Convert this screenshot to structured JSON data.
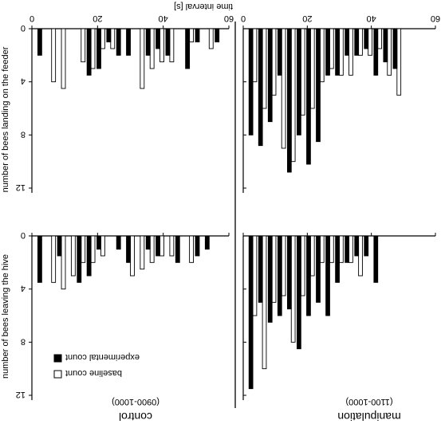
{
  "figure": {
    "x_axis_title": "time interval [s]",
    "y_label_top": "number of bees landing on the feeder",
    "y_label_bottom": "number of bees leaving the hive",
    "panel_left_title": "manipulation",
    "panel_left_time": "(1100-1000)",
    "panel_right_title": "control",
    "panel_right_time": "(0900-1000)",
    "legend_baseline": "baseline count",
    "legend_experimental": "experimental count",
    "legend_baseline_color": "#ffffff",
    "legend_experimental_color": "#000000"
  },
  "chart_data": [
    {
      "type": "bar",
      "title": "manipulation",
      "subtitle": "(1100-1000)",
      "ylabel": "number of bees landing on the feeder",
      "xlabel": "time interval [s]",
      "ylim": [
        0,
        12
      ],
      "xlim": [
        0,
        60
      ],
      "x_ticks": [
        0,
        20,
        40,
        60
      ],
      "y_ticks": [
        0,
        4,
        8,
        12
      ],
      "categories": [
        3,
        6,
        9,
        12,
        15,
        18,
        21,
        24,
        27,
        30,
        33,
        36,
        39,
        42,
        45,
        48,
        51,
        54,
        57
      ],
      "series": [
        {
          "name": "baseline count",
          "color": "#ffffff",
          "values": [
            4,
            6,
            5,
            9,
            10,
            6.5,
            6,
            4,
            3,
            3.5,
            3.5,
            2,
            2,
            1.5,
            3.5,
            5,
            0,
            0,
            0
          ]
        },
        {
          "name": "experimental count",
          "color": "#000000",
          "values": [
            8,
            8.8,
            7,
            3.5,
            10.8,
            8,
            10.2,
            8.5,
            3.5,
            3.5,
            2,
            2,
            1.5,
            3.5,
            2.5,
            3,
            0,
            0,
            0
          ]
        }
      ]
    },
    {
      "type": "bar",
      "title": "control",
      "subtitle": "(0900-1000)",
      "ylabel": "number of bees landing on the feeder",
      "xlabel": "time interval [s]",
      "ylim": [
        0,
        12
      ],
      "xlim": [
        0,
        60
      ],
      "x_ticks": [
        0,
        20,
        40,
        60
      ],
      "y_ticks": [
        0,
        4,
        8,
        12
      ],
      "categories": [
        3,
        6,
        9,
        12,
        15,
        18,
        21,
        24,
        27,
        30,
        33,
        36,
        39,
        42,
        45,
        48,
        51,
        54,
        57
      ],
      "series": [
        {
          "name": "baseline count",
          "color": "#ffffff",
          "values": [
            0,
            4,
            4.5,
            0,
            2.5,
            3,
            1.5,
            1.5,
            0,
            0,
            4.5,
            3,
            2.5,
            2.5,
            0,
            1,
            0,
            1.5,
            0
          ]
        },
        {
          "name": "experimental count",
          "color": "#000000",
          "values": [
            2,
            0,
            0,
            0,
            0,
            3.5,
            3,
            1,
            2,
            2,
            0,
            2,
            1.5,
            2,
            0,
            3,
            1,
            0,
            1
          ]
        }
      ]
    },
    {
      "type": "bar",
      "title": "manipulation",
      "subtitle": "(1100-1000)",
      "ylabel": "number of bees leaving the hive",
      "xlabel": "time interval [s]",
      "ylim": [
        0,
        12
      ],
      "xlim": [
        0,
        60
      ],
      "x_ticks": [
        0,
        20,
        40,
        60
      ],
      "y_ticks": [
        0,
        4,
        8,
        12
      ],
      "categories": [
        3,
        6,
        9,
        12,
        15,
        18,
        21,
        24,
        27,
        30,
        33,
        36,
        39,
        42,
        45,
        48,
        51,
        54,
        57
      ],
      "series": [
        {
          "name": "baseline count",
          "color": "#ffffff",
          "values": [
            6,
            10,
            5,
            4.5,
            8,
            4.5,
            3,
            2,
            2,
            2,
            2,
            3,
            0,
            0,
            0,
            0,
            0,
            0,
            0
          ]
        },
        {
          "name": "experimental count",
          "color": "#000000",
          "values": [
            11.5,
            5,
            6.5,
            6,
            5.5,
            8.5,
            6,
            5,
            6,
            3.5,
            2,
            1.5,
            1.5,
            3.5,
            0,
            0,
            0,
            0,
            0
          ]
        }
      ]
    },
    {
      "type": "bar",
      "title": "control",
      "subtitle": "(0900-1000)",
      "ylabel": "number of bees leaving the hive",
      "xlabel": "time interval [s]",
      "ylim": [
        0,
        12
      ],
      "xlim": [
        0,
        60
      ],
      "x_ticks": [
        0,
        20,
        40,
        60
      ],
      "y_ticks": [
        0,
        4,
        8,
        12
      ],
      "categories": [
        3,
        6,
        9,
        12,
        15,
        18,
        21,
        24,
        27,
        30,
        33,
        36,
        39,
        42,
        45,
        48,
        51,
        54,
        57
      ],
      "series": [
        {
          "name": "baseline count",
          "color": "#ffffff",
          "values": [
            0,
            3.5,
            4,
            3,
            2,
            2,
            1.5,
            0,
            0,
            3,
            2.5,
            2,
            1.5,
            1.5,
            0,
            2,
            0,
            0,
            0
          ]
        },
        {
          "name": "experimental count",
          "color": "#000000",
          "values": [
            3.5,
            0,
            1.5,
            0,
            3.5,
            3,
            1,
            0,
            1,
            2,
            0,
            1,
            1.5,
            0,
            2,
            0,
            1.5,
            1,
            0
          ]
        }
      ]
    }
  ]
}
